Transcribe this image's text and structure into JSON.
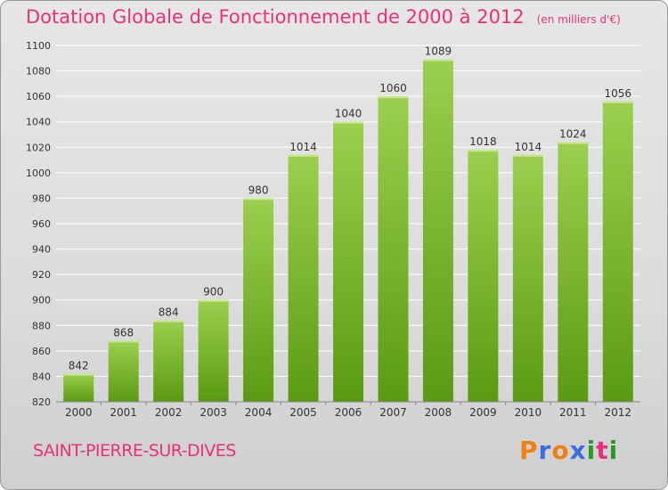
{
  "header": {
    "title": "Dotation Globale de Fonctionnement de 2000 à 2012",
    "subtitle": "(en milliers d'€)"
  },
  "footer": {
    "city": "SAINT-PIERRE-SUR-DIVES",
    "logo_text": "Proxiti"
  },
  "colors": {
    "accent": "#e8317a",
    "bar_top": "#9ccf4f",
    "bar_bottom": "#5a9a13",
    "logo_letters": [
      "#f07f18",
      "#3d6ee0",
      "#f07f18",
      "#3d6ee0",
      "#2a9a2a",
      "#e8317a",
      "#2a9a2a"
    ]
  },
  "chart_data": {
    "type": "bar",
    "categories": [
      "2000",
      "2001",
      "2002",
      "2003",
      "2004",
      "2005",
      "2006",
      "2007",
      "2008",
      "2009",
      "2010",
      "2011",
      "2012"
    ],
    "values": [
      842,
      868,
      884,
      900,
      980,
      1014,
      1040,
      1060,
      1089,
      1018,
      1014,
      1024,
      1056
    ],
    "data_labels": [
      "842",
      "868",
      "884",
      "900",
      "980",
      "1014",
      "1040",
      "1060",
      "1089",
      "1018",
      "1014",
      "1024",
      "1056"
    ],
    "ylim": [
      820,
      1100
    ],
    "yticks": [
      "820",
      "840",
      "860",
      "880",
      "900",
      "920",
      "940",
      "960",
      "980",
      "1000",
      "1020",
      "1040",
      "1060",
      "1080",
      "1100"
    ],
    "grid": true,
    "legend": "none"
  }
}
